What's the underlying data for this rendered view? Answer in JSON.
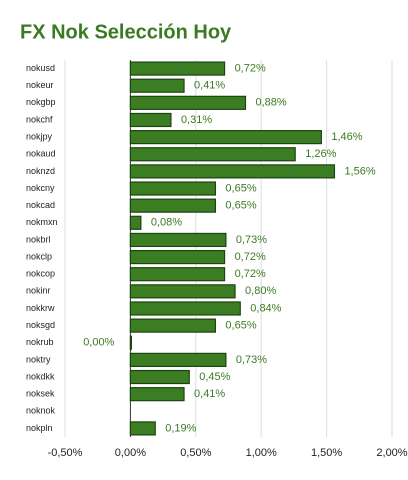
{
  "chart_data": {
    "type": "bar",
    "orientation": "horizontal",
    "title": "FX Nok Selección Hoy",
    "categories": [
      "nokusd",
      "nokeur",
      "nokgbp",
      "nokchf",
      "nokjpy",
      "nokaud",
      "noknzd",
      "nokcny",
      "nokcad",
      "nokmxn",
      "nokbrl",
      "nokclp",
      "nokcop",
      "nokinr",
      "nokkrw",
      "noksgd",
      "nokrub",
      "noktry",
      "nokdkk",
      "noksek",
      "noknok",
      "nokpln"
    ],
    "values": [
      0.72,
      0.41,
      0.88,
      0.31,
      1.46,
      1.26,
      1.56,
      0.65,
      0.65,
      0.08,
      0.73,
      0.72,
      0.72,
      0.8,
      0.84,
      0.65,
      0.0,
      0.73,
      0.45,
      0.41,
      null,
      0.19
    ],
    "value_labels": [
      "0,72%",
      "0,41%",
      "0,88%",
      "0,31%",
      "1,46%",
      "1,26%",
      "1,56%",
      "0,65%",
      "0,65%",
      "0,08%",
      "0,73%",
      "0,72%",
      "0,72%",
      "0,80%",
      "0,84%",
      "0,65%",
      "0,00%",
      "0,73%",
      "0,45%",
      "0,41%",
      null,
      "0,19%"
    ],
    "color": "#3b7d23",
    "xlim": [
      -0.5,
      2.0
    ],
    "xticks": [
      {
        "value": -0.5,
        "label": "-0,50%"
      },
      {
        "value": 0,
        "label": "0,00%"
      },
      {
        "value": 0.5,
        "label": "0,50%"
      },
      {
        "value": 1.0,
        "label": "1,00%"
      },
      {
        "value": 1.5,
        "label": "1,50%"
      },
      {
        "value": 2.0,
        "label": "2,00%"
      }
    ],
    "grid": true
  }
}
